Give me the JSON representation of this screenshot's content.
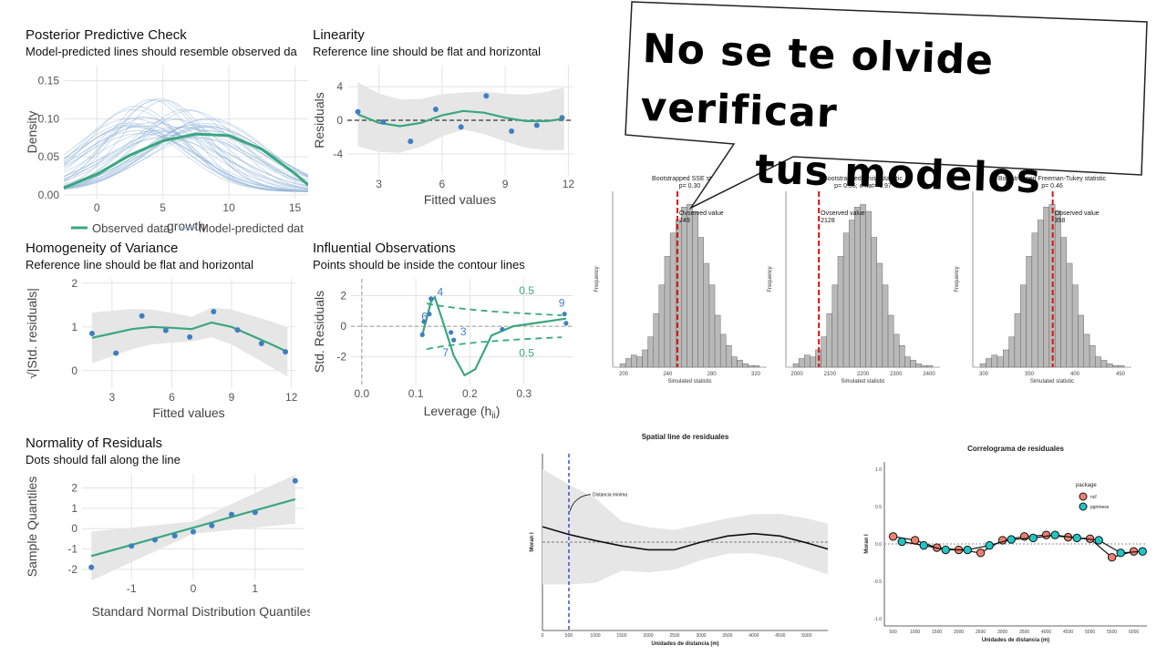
{
  "banner": {
    "line1": "No se te olvide verificar",
    "line2": "tus modelos"
  },
  "ppc": {
    "title": "Posterior Predictive Check",
    "subtitle": "Model-predicted lines should resemble observed da",
    "chart_data": {
      "type": "line",
      "xlabel": "growth",
      "ylabel": "Density",
      "xlim": [
        -2.5,
        16
      ],
      "ylim": [
        -0.005,
        0.17
      ],
      "xticks": [
        "0",
        "5",
        "10",
        "15"
      ],
      "yticks": [
        "0.00",
        "0.05",
        "0.10",
        "0.15"
      ],
      "legend": [
        "Observed data",
        "Model-predicted dat"
      ],
      "series": [
        {
          "name": "Observed data",
          "x": [
            -2.5,
            0,
            2.5,
            5,
            7.5,
            10,
            12.5,
            15,
            16
          ],
          "y": [
            0.009,
            0.027,
            0.052,
            0.071,
            0.08,
            0.078,
            0.06,
            0.028,
            0.013
          ]
        }
      ],
      "colors": {
        "observed": "#3aa77e",
        "predicted": "#8fb3d6"
      }
    }
  },
  "lin": {
    "title": "Linearity",
    "subtitle": "Reference line should be flat and horizontal",
    "chart_data": {
      "type": "scatter",
      "xlabel": "Fitted values",
      "ylabel": "Residuals",
      "xlim": [
        1.5,
        12.2
      ],
      "ylim": [
        -6.5,
        6.5
      ],
      "xticks": [
        "3",
        "6",
        "9",
        "12"
      ],
      "yticks": [
        "-4",
        "0",
        "4"
      ],
      "points": [
        [
          2,
          1
        ],
        [
          3.2,
          -0.2
        ],
        [
          4.5,
          -2.5
        ],
        [
          5.7,
          1.3
        ],
        [
          6.9,
          -0.8
        ],
        [
          8.1,
          2.9
        ],
        [
          9.3,
          -1.3
        ],
        [
          10.5,
          -0.6
        ],
        [
          11.7,
          0.3
        ]
      ],
      "smooth": [
        [
          2,
          0.7
        ],
        [
          3,
          -0.3
        ],
        [
          4,
          -0.7
        ],
        [
          5,
          -0.3
        ],
        [
          6,
          0.6
        ],
        [
          7,
          1.1
        ],
        [
          8,
          0.9
        ],
        [
          9,
          0.3
        ],
        [
          10,
          -0.1
        ],
        [
          11,
          -0.1
        ],
        [
          11.8,
          0.2
        ]
      ]
    }
  },
  "hov": {
    "title": "Homogeneity of Variance",
    "subtitle": "Reference line should be flat and horizontal",
    "chart_data": {
      "type": "scatter",
      "xlabel": "Fitted values",
      "ylabel": "√|Std. residuals|",
      "xlim": [
        1.5,
        12.2
      ],
      "ylim": [
        -0.4,
        2.1
      ],
      "xticks": [
        "3",
        "6",
        "9",
        "12"
      ],
      "yticks": [
        "0",
        "1",
        "2"
      ],
      "points": [
        [
          2,
          0.85
        ],
        [
          3.2,
          0.4
        ],
        [
          4.5,
          1.25
        ],
        [
          5.7,
          0.92
        ],
        [
          6.9,
          0.77
        ],
        [
          8.1,
          1.35
        ],
        [
          9.3,
          0.93
        ],
        [
          10.5,
          0.62
        ],
        [
          11.7,
          0.43
        ]
      ],
      "smooth": [
        [
          2,
          0.75
        ],
        [
          3,
          0.85
        ],
        [
          4,
          0.95
        ],
        [
          5,
          1.0
        ],
        [
          6,
          0.98
        ],
        [
          7,
          0.95
        ],
        [
          8,
          1.1
        ],
        [
          9,
          1.0
        ],
        [
          10,
          0.8
        ],
        [
          11,
          0.6
        ],
        [
          11.8,
          0.43
        ]
      ]
    }
  },
  "infl": {
    "title": "Influential Observations",
    "subtitle": "Points should be inside the contour lines",
    "chart_data": {
      "type": "scatter",
      "xlabel": "Leverage (h",
      "xlabel_sub": "ii",
      "xlabel_end": ")",
      "ylabel": "Std. Residuals",
      "xlim": [
        -0.02,
        0.39
      ],
      "ylim": [
        -3.8,
        3.1
      ],
      "xticks": [
        "0.0",
        "0.1",
        "0.2",
        "0.3"
      ],
      "yticks": [
        "-2",
        "0",
        "2"
      ],
      "points": [
        [
          0.112,
          -0.55
        ],
        [
          0.115,
          0.3
        ],
        [
          0.125,
          0.8
        ],
        [
          0.128,
          1.8
        ],
        [
          0.165,
          -0.4
        ],
        [
          0.17,
          -0.9
        ],
        [
          0.26,
          -0.2
        ],
        [
          0.375,
          0.8
        ],
        [
          0.378,
          0.2
        ]
      ],
      "labels": [
        {
          "x": 0.116,
          "y": 0.4,
          "t": "6"
        },
        {
          "x": 0.145,
          "y": 2.0,
          "t": "4"
        },
        {
          "x": 0.188,
          "y": -0.6,
          "t": "3"
        },
        {
          "x": 0.155,
          "y": -1.95,
          "t": "7"
        },
        {
          "x": 0.37,
          "y": 1.3,
          "t": "9"
        }
      ],
      "contour_labels": [
        {
          "x": 0.305,
          "y": 2.1,
          "t": "0.5"
        },
        {
          "x": 0.305,
          "y": -2.0,
          "t": "0.5"
        }
      ]
    }
  },
  "norm": {
    "title": "Normality of Residuals",
    "subtitle": "Dots should fall along the line",
    "chart_data": {
      "type": "scatter",
      "xlabel": "Standard Normal Distribution Quantiles",
      "ylabel": "Sample Quantiles",
      "xlim": [
        -1.8,
        1.8
      ],
      "ylim": [
        -2.5,
        2.7
      ],
      "xticks": [
        "-1",
        "0",
        "1"
      ],
      "yticks": [
        "-2",
        "-1",
        "0",
        "1",
        "2"
      ],
      "points": [
        [
          -1.65,
          -1.9
        ],
        [
          -1.0,
          -0.85
        ],
        [
          -0.62,
          -0.55
        ],
        [
          -0.3,
          -0.35
        ],
        [
          0,
          -0.15
        ],
        [
          0.3,
          0.15
        ],
        [
          0.62,
          0.7
        ],
        [
          1.0,
          0.8
        ],
        [
          1.65,
          2.35
        ]
      ]
    }
  },
  "boots": [
    {
      "title": "Bootstrapped SSE statistic",
      "subtitle": "p= 0.30",
      "obs": "Ovserved value",
      "obs_val": "249",
      "xlabel": "Simulated statistic",
      "ylabel": "Frequency",
      "xticks": [
        "200",
        "240",
        "280",
        "320"
      ]
    },
    {
      "title": "Bootstrapped Chisq statistic",
      "subtitle": "p= 0.86; c-hat= 0.97",
      "obs": "Ovserved value",
      "obs_val": "2128",
      "xlabel": "Simulated statistic",
      "ylabel": "Frequency",
      "xticks": [
        "2000",
        "2100",
        "2200",
        "2300",
        "2400"
      ]
    },
    {
      "title": "Bootstrapped Freeman-Tukey statistic",
      "subtitle": "p= 0.46",
      "obs": "Observed value",
      "obs_val": "358",
      "xlabel": "Simulated statistic",
      "ylabel": "Frequency",
      "xticks": [
        "300",
        "350",
        "400",
        "450"
      ]
    }
  ],
  "spatial": {
    "title": "Spatial line de residuales",
    "annotation": "Distancia minima",
    "xlabel": "Unidades de distancia (m)",
    "ylabel": "Moran I",
    "xticks": [
      "0",
      "500",
      "1000",
      "1500",
      "2000",
      "2500",
      "3000",
      "3500",
      "4000",
      "4500",
      "5000"
    ],
    "chart_data": {
      "type": "line",
      "xlim": [
        0,
        5400
      ],
      "ylim": [
        -1.15,
        1.15
      ],
      "x": [
        0,
        500,
        1000,
        1500,
        2000,
        2500,
        3000,
        3500,
        4000,
        4500,
        5000,
        5400
      ],
      "y": [
        0.2,
        0.1,
        0.02,
        -0.05,
        -0.1,
        -0.1,
        0.0,
        0.08,
        0.11,
        0.08,
        -0.01,
        -0.09
      ],
      "vline": 500
    }
  },
  "correl": {
    "title": "Correlograma de residuales",
    "xlabel": "Unidades de distancia (m)",
    "ylabel": "Moran I",
    "xticks": [
      "500",
      "1000",
      "1500",
      "2000",
      "2500",
      "3000",
      "3500",
      "4000",
      "4500",
      "5000",
      "5500",
      "6000"
    ],
    "yticks": [
      "-1.0",
      "-0.5",
      "0.0",
      "0.5",
      "1.0"
    ],
    "legend_title": "package",
    "legend": [
      "ncf",
      "pgirmess"
    ],
    "colors": {
      "ncf": "#f07e6e",
      "pgirmess": "#1ec7c4"
    },
    "chart_data": {
      "type": "line",
      "xlim": [
        300,
        6300
      ],
      "ylim": [
        -1.1,
        1.1
      ],
      "series": [
        {
          "name": "ncf",
          "x": [
            500,
            1000,
            1500,
            2000,
            2500,
            3000,
            3500,
            4000,
            4500,
            5000,
            5500,
            6000
          ],
          "y": [
            0.1,
            0.05,
            -0.05,
            -0.08,
            -0.12,
            0.05,
            0.1,
            0.12,
            0.09,
            0.07,
            -0.18,
            -0.1
          ]
        },
        {
          "name": "pgirmess",
          "x": [
            700,
            1200,
            1700,
            2200,
            2700,
            3200,
            3700,
            4200,
            4700,
            5200,
            5700,
            6200
          ],
          "y": [
            0.03,
            -0.02,
            -0.08,
            -0.08,
            -0.02,
            0.06,
            0.08,
            0.12,
            0.08,
            0.05,
            -0.12,
            -0.1
          ]
        }
      ]
    }
  }
}
